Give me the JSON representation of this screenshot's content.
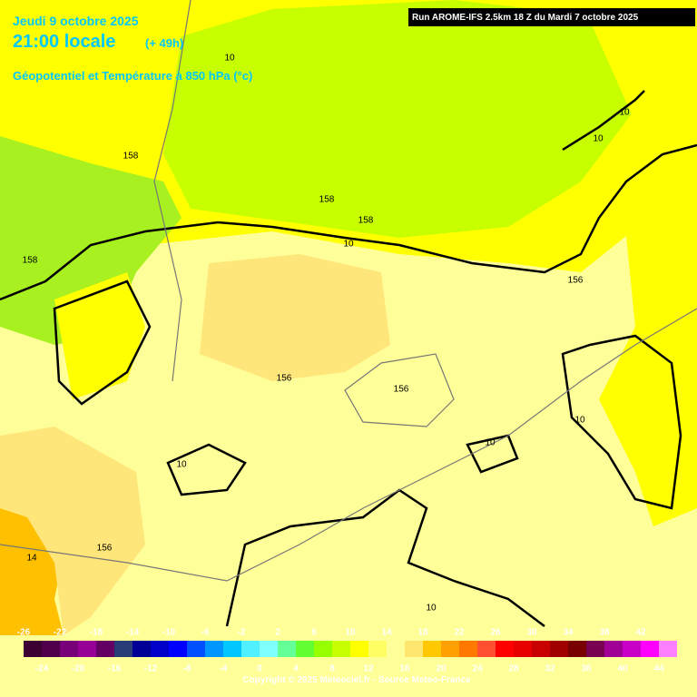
{
  "header": {
    "date": "Jeudi 9 octobre 2025",
    "time": "21:00 locale",
    "lead": "(+ 49h)",
    "field": "Géopotentiel et Température à 850 hPa (°c)",
    "run": "Run AROME-IFS 2.5km 18 Z du Mardi 7 octobre 2025"
  },
  "contour_labels": [
    "10",
    "10",
    "10",
    "158",
    "158",
    "158",
    "10",
    "158",
    "156",
    "156",
    "156",
    "10",
    "10",
    "10",
    "156",
    "14",
    "10"
  ],
  "colorbar": {
    "ticks_top": [
      -26,
      -22,
      -18,
      -14,
      -10,
      -6,
      -2,
      2,
      6,
      10,
      14,
      18,
      22,
      26,
      30,
      34,
      38,
      42
    ],
    "ticks_bottom": [
      -24,
      -20,
      -16,
      -12,
      -8,
      -4,
      0,
      4,
      8,
      12,
      16,
      20,
      24,
      28,
      32,
      36,
      40,
      44
    ],
    "colors": [
      "#3c0032",
      "#50004b",
      "#780078",
      "#960096",
      "#640064",
      "#283c78",
      "#000096",
      "#0000c8",
      "#0000ff",
      "#0050ff",
      "#0096ff",
      "#00c8ff",
      "#50f0ff",
      "#80ffff",
      "#64ff96",
      "#64ff32",
      "#96ff00",
      "#c8ff00",
      "#ffff00",
      "#ffff64",
      "#ffff99",
      "#ffe66e",
      "#ffc800",
      "#ffa000",
      "#ff7800",
      "#ff5032",
      "#ff0000",
      "#e60000",
      "#c80000",
      "#a00000",
      "#780000",
      "#780050",
      "#a00096",
      "#c800c8",
      "#ff00ff",
      "#ff80ff"
    ]
  },
  "footer": {
    "copyright": "Copyright © 2025 Meteociel.fr - Source Meteo-France"
  }
}
